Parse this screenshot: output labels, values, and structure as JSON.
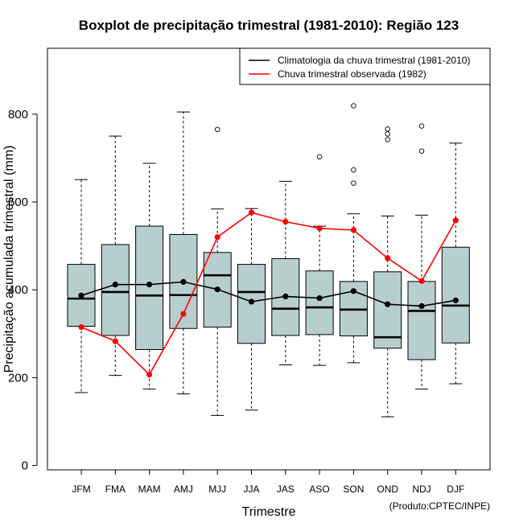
{
  "chart_data": {
    "type": "boxplot",
    "title": "Boxplot de precipitação trimestral (1981-2010): Região 123",
    "xlabel": "Trimestre",
    "ylabel": "Precipitação acumulada trimestral (mm)",
    "ylim": [
      -10,
      950
    ],
    "yticks": [
      0,
      200,
      400,
      600,
      800
    ],
    "categories": [
      "JFM",
      "FMA",
      "MAM",
      "AMJ",
      "MJJ",
      "JJA",
      "JAS",
      "ASO",
      "SON",
      "OND",
      "NDJ",
      "DJF"
    ],
    "boxes": [
      {
        "whisker_low": 166,
        "q1": 317,
        "median": 380,
        "q3": 458,
        "whisker_high": 651,
        "outliers": []
      },
      {
        "whisker_low": 205,
        "q1": 296,
        "median": 395,
        "q3": 503,
        "whisker_high": 750,
        "outliers": []
      },
      {
        "whisker_low": 174,
        "q1": 264,
        "median": 387,
        "q3": 545,
        "whisker_high": 688,
        "outliers": []
      },
      {
        "whisker_low": 163,
        "q1": 312,
        "median": 388,
        "q3": 526,
        "whisker_high": 805,
        "outliers": []
      },
      {
        "whisker_low": 114,
        "q1": 315,
        "median": 433,
        "q3": 485,
        "whisker_high": 584,
        "outliers": [
          765
        ]
      },
      {
        "whisker_low": 126,
        "q1": 278,
        "median": 395,
        "q3": 458,
        "whisker_high": 585,
        "outliers": []
      },
      {
        "whisker_low": 229,
        "q1": 296,
        "median": 357,
        "q3": 471,
        "whisker_high": 647,
        "outliers": []
      },
      {
        "whisker_low": 228,
        "q1": 298,
        "median": 360,
        "q3": 443,
        "whisker_high": 545,
        "outliers": [
          703
        ]
      },
      {
        "whisker_low": 234,
        "q1": 295,
        "median": 355,
        "q3": 419,
        "whisker_high": 573,
        "outliers": [
          643,
          673,
          819
        ]
      },
      {
        "whisker_low": 111,
        "q1": 267,
        "median": 292,
        "q3": 441,
        "whisker_high": 568,
        "outliers": [
          742,
          755,
          766
        ]
      },
      {
        "whisker_low": 174,
        "q1": 241,
        "median": 352,
        "q3": 419,
        "whisker_high": 570,
        "outliers": [
          716,
          773
        ]
      },
      {
        "whisker_low": 186,
        "q1": 279,
        "median": 364,
        "q3": 497,
        "whisker_high": 734,
        "outliers": []
      }
    ],
    "series": [
      {
        "name": "Climatologia da chuva trimestral (1981-2010)",
        "color": "#000000",
        "values": [
          387,
          412,
          412,
          418,
          401,
          373,
          385,
          381,
          397,
          367,
          363,
          376
        ]
      },
      {
        "name": "Chuva trimestral observada (1982)",
        "color": "#ff0000",
        "values": [
          315,
          283,
          207,
          345,
          520,
          576,
          555,
          540,
          536,
          472,
          420,
          558
        ]
      }
    ],
    "legend_position": "top-right",
    "box_fill": "#b7cece",
    "credit": "(Produto:CPTEC/INPE)"
  }
}
